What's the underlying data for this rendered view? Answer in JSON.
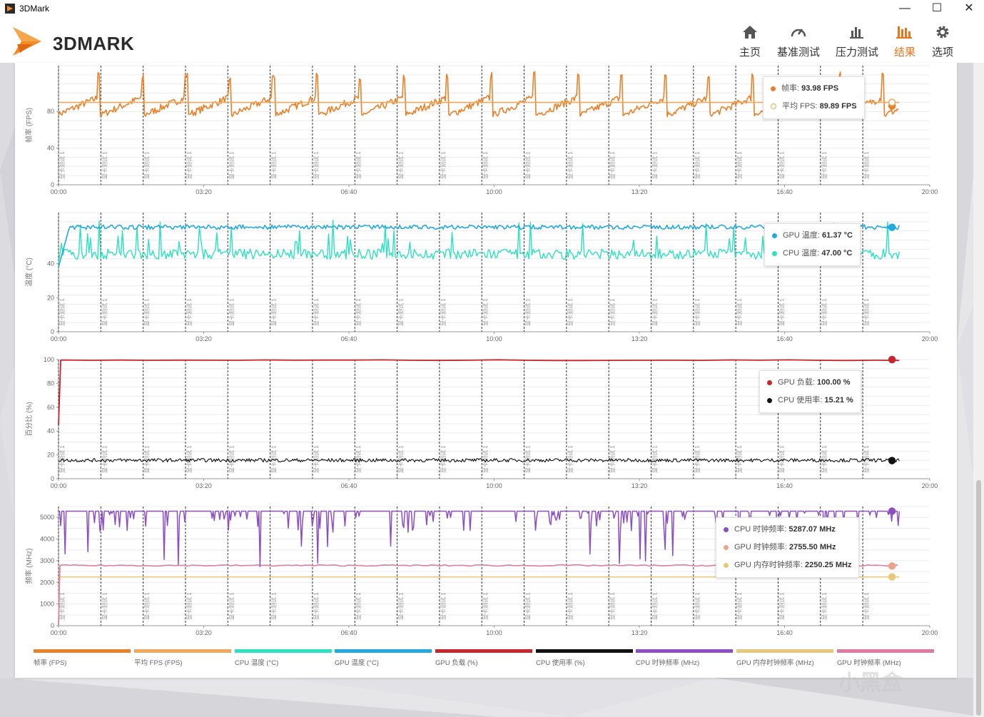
{
  "window": {
    "title": "3DMark",
    "controls": {
      "minimize": "—",
      "maximize": "☐",
      "close": "✕"
    }
  },
  "header": {
    "logo_text": "3DMARK",
    "nav": [
      {
        "label": "主页",
        "icon": "home-icon",
        "active": false
      },
      {
        "label": "基准测试",
        "icon": "gauge-icon",
        "active": false
      },
      {
        "label": "压力测试",
        "icon": "bar-chart-icon",
        "active": false
      },
      {
        "label": "结果",
        "icon": "results-chart-icon",
        "active": true
      },
      {
        "label": "选项",
        "icon": "gear-icon",
        "active": false
      }
    ]
  },
  "colors": {
    "accent": "#e8741c",
    "fps": "#e8812a",
    "avg_fps": "#f0a85c",
    "cpu_temp": "#2de0c0",
    "gpu_temp": "#23a9e1",
    "gpu_load": "#c8252c",
    "cpu_usage": "#111111",
    "cpu_clock": "#8b4ec3",
    "gpu_mem_clock": "#e6c87a",
    "gpu_clock": "#e07aa0"
  },
  "chart_data": [
    {
      "type": "line",
      "ylabel": "帧率 (FPS)",
      "yticks": [
        0,
        40,
        80
      ],
      "ylim": [
        0,
        130
      ],
      "xlim": [
        0,
        1200
      ],
      "xticks": [
        "00:00",
        "03:20",
        "06:40",
        "10:00",
        "13:20",
        "16:40",
        "20:00"
      ],
      "marker_label": "显卡测试 1",
      "marker_count": 20,
      "series": [
        {
          "name": "帧率",
          "key": "fps",
          "typical_low": 78,
          "typical_high": 95,
          "peak": 124,
          "cycles": 20
        },
        {
          "name": "平均 FPS",
          "key": "avg_fps",
          "value": 89.89
        }
      ],
      "tooltip": [
        {
          "name": "帧率",
          "value": "93.98 FPS",
          "color": "#e8812a"
        },
        {
          "name": "平均 FPS",
          "value": "89.89 FPS",
          "color": "#f0a85c"
        }
      ],
      "grid": true
    },
    {
      "type": "line",
      "ylabel": "温度 (°C)",
      "yticks": [
        0,
        20,
        40
      ],
      "ylim": [
        0,
        70
      ],
      "xlim": [
        0,
        1200
      ],
      "xticks": [
        "00:00",
        "03:20",
        "06:40",
        "10:00",
        "13:20",
        "16:40",
        "20:00"
      ],
      "marker_label": "显卡测试 1",
      "marker_count": 20,
      "series": [
        {
          "name": "GPU 温度",
          "key": "gpu_temp",
          "start": 38,
          "steady": 61.5,
          "end": 61.37
        },
        {
          "name": "CPU 温度",
          "key": "cpu_temp",
          "baseline": 45,
          "spike_high": 60,
          "end": 47.0
        }
      ],
      "tooltip": [
        {
          "name": "GPU 温度",
          "value": "61.37 °C",
          "color": "#23a9e1"
        },
        {
          "name": "CPU 温度",
          "value": "47.00 °C",
          "color": "#2de0c0"
        }
      ],
      "grid": true
    },
    {
      "type": "line",
      "ylabel": "百分比 (%)",
      "yticks": [
        0,
        20,
        40,
        60,
        80,
        100
      ],
      "ylim": [
        0,
        100
      ],
      "xlim": [
        0,
        1200
      ],
      "xticks": [
        "00:00",
        "03:20",
        "06:40",
        "10:00",
        "13:20",
        "16:40",
        "20:00"
      ],
      "marker_label": "显卡测试 1",
      "marker_count": 20,
      "series": [
        {
          "name": "GPU 负载",
          "key": "gpu_load",
          "start": 45,
          "steady": 99.5,
          "end": 100.0
        },
        {
          "name": "CPU 使用率",
          "key": "cpu_usage",
          "mean": 15.5,
          "end": 15.21
        }
      ],
      "tooltip": [
        {
          "name": "GPU 负载",
          "value": "100.00 %",
          "color": "#c8252c"
        },
        {
          "name": "CPU 使用率",
          "value": "15.21 %",
          "color": "#111111"
        }
      ],
      "grid": true
    },
    {
      "type": "line",
      "ylabel": "频率 (MHz)",
      "yticks": [
        0,
        1000,
        2000,
        3000,
        4000,
        5000
      ],
      "ylim": [
        0,
        5500
      ],
      "xlim": [
        0,
        1200
      ],
      "xticks": [
        "00:00",
        "03:20",
        "06:40",
        "10:00",
        "13:20",
        "16:40",
        "20:00"
      ],
      "marker_label": "显卡测试 1",
      "marker_count": 20,
      "series": [
        {
          "name": "CPU 时钟频率",
          "key": "cpu_clock",
          "top": 5287,
          "dip_low": 2600,
          "end": 5287.07
        },
        {
          "name": "GPU 时钟频率",
          "key": "gpu_clock",
          "steady": 2780,
          "end": 2755.5
        },
        {
          "name": "GPU 内存时钟频率",
          "key": "gpu_mem_clock",
          "steady": 2250.25,
          "end": 2250.25
        }
      ],
      "tooltip": [
        {
          "name": "CPU 时钟频率",
          "value": "5287.07 MHz",
          "color": "#8b4ec3"
        },
        {
          "name": "GPU 时钟频率",
          "value": "2755.50 MHz",
          "color": "#e07aa0"
        },
        {
          "name": "GPU 内存时钟频率",
          "value": "2250.25 MHz",
          "color": "#e6c87a"
        }
      ],
      "grid": true
    }
  ],
  "legend": [
    {
      "label": "帧率 (FPS)",
      "color": "#e8812a"
    },
    {
      "label": "平均 FPS (FPS)",
      "color": "#f0a85c"
    },
    {
      "label": "CPU 温度 (°C)",
      "color": "#2de0c0"
    },
    {
      "label": "GPU 温度 (°C)",
      "color": "#23a9e1"
    },
    {
      "label": "GPU 负载 (%)",
      "color": "#c8252c"
    },
    {
      "label": "CPU 使用率 (%)",
      "color": "#111111"
    },
    {
      "label": "CPU 时钟频率 (MHz)",
      "color": "#8b4ec3"
    },
    {
      "label": "GPU 内存时钟频率 (MHz)",
      "color": "#e6c87a"
    },
    {
      "label": "GPU 时钟频率 (MHz)",
      "color": "#e07aa0"
    }
  ],
  "watermark": "小黑盒"
}
